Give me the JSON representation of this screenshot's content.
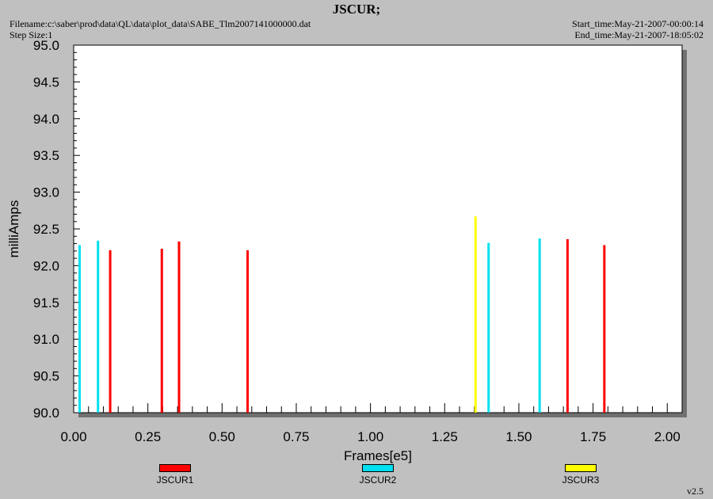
{
  "header": {
    "title": "JSCUR;",
    "filename": "Filename:c:\\saber\\prod\\data\\QL\\data\\plot_data\\SABE_Tlm2007141000000.dat",
    "step_size": "Step Size:1",
    "start_time": "Start_time:May-21-2007-00:00:14",
    "end_time": "End_time:May-21-2007-18:05:02"
  },
  "version": "v2.5",
  "chart_data": {
    "type": "bar",
    "xlabel": "Frames[e5]",
    "ylabel": "milliAmps",
    "xlim": [
      0.0,
      2.05
    ],
    "ylim": [
      90.0,
      95.0
    ],
    "xticks": [
      "0.00",
      "0.25",
      "0.50",
      "0.75",
      "1.00",
      "1.25",
      "1.50",
      "1.75",
      "2.00"
    ],
    "yticks": [
      "90.0",
      "90.5",
      "91.0",
      "91.5",
      "92.0",
      "92.5",
      "93.0",
      "93.5",
      "94.0",
      "94.5",
      "95.0"
    ],
    "series": [
      {
        "name": "JSCUR1",
        "color": "#ff0000",
        "points": [
          {
            "x": 0.123,
            "y": 92.21
          },
          {
            "x": 0.297,
            "y": 92.23
          },
          {
            "x": 0.355,
            "y": 92.33
          },
          {
            "x": 0.586,
            "y": 92.21
          },
          {
            "x": 1.664,
            "y": 92.36
          },
          {
            "x": 1.788,
            "y": 92.28
          }
        ]
      },
      {
        "name": "JSCUR2",
        "color": "#00e0f0",
        "points": [
          {
            "x": 0.02,
            "y": 92.28
          },
          {
            "x": 0.082,
            "y": 92.34
          },
          {
            "x": 1.398,
            "y": 92.31
          },
          {
            "x": 1.57,
            "y": 92.37
          }
        ]
      },
      {
        "name": "JSCUR3",
        "color": "#ffff00",
        "points": [
          {
            "x": 1.354,
            "y": 92.67
          }
        ]
      }
    ]
  }
}
